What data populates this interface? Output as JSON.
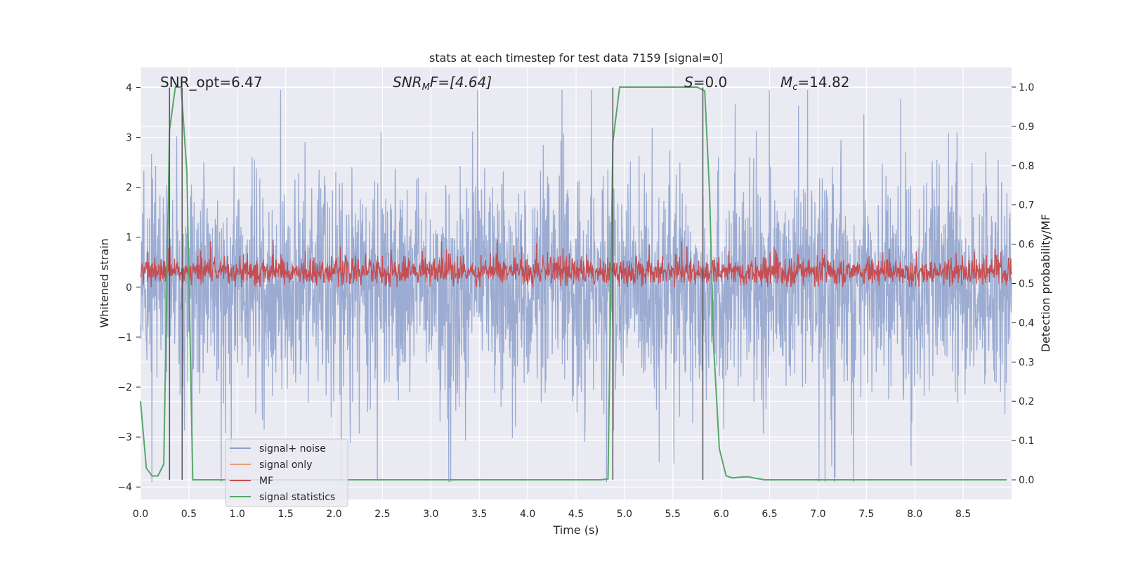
{
  "chart_data": {
    "type": "line",
    "title": "stats at each timestep for test data 7159 [signal=0]",
    "xlabel": "Time (s)",
    "ylabel_left": "Whitened strain",
    "ylabel_right": "Detection probability/MF",
    "xlim": [
      0,
      9
    ],
    "ylim_left": [
      -4.25,
      4.4
    ],
    "ylim_right": [
      -0.05,
      1.05
    ],
    "x_ticks": [
      "0.0",
      "0.5",
      "1.0",
      "1.5",
      "2.0",
      "2.5",
      "3.0",
      "3.5",
      "4.0",
      "4.5",
      "5.0",
      "5.5",
      "6.0",
      "6.5",
      "7.0",
      "7.5",
      "8.0",
      "8.5"
    ],
    "y_left_ticks": [
      "−4",
      "−3",
      "−2",
      "−1",
      "0",
      "1",
      "2",
      "3",
      "4"
    ],
    "y_right_ticks": [
      "0.0",
      "0.1",
      "0.2",
      "0.3",
      "0.4",
      "0.5",
      "0.6",
      "0.7",
      "0.8",
      "0.9",
      "1.0"
    ],
    "grid": true,
    "legend_placement": "lower-left",
    "annotations": {
      "snr_opt": "SNR_opt=6.47",
      "snr_mf_base": "SNR",
      "snr_mf_sub": "M",
      "snr_mf_rest": "F=[4.64]",
      "s_main": "S",
      "s_rest": "=0.0",
      "mc_main": "M",
      "mc_sub": "c",
      "mc_rest": "=14.82"
    },
    "series": [
      {
        "name": "signal+ noise",
        "color": "#8da0cb",
        "axis": "left",
        "style": "dense-noise",
        "envelope_typical": [
          -1.6,
          1.6
        ],
        "envelope_peak": [
          -3.9,
          3.95
        ]
      },
      {
        "name": "signal only",
        "color": "#e8a07a",
        "axis": "left",
        "values": []
      },
      {
        "name": "MF",
        "color": "#c44e52",
        "axis": "left",
        "style": "dense-noise",
        "envelope_typical": [
          0.1,
          0.6
        ],
        "envelope_peak": [
          0.0,
          0.95
        ]
      },
      {
        "name": "signal statistics",
        "color": "#55a868",
        "axis": "right",
        "x": [
          0.0,
          0.06,
          0.12,
          0.18,
          0.24,
          0.3,
          0.36,
          0.42,
          0.48,
          0.54,
          0.6,
          0.66,
          0.72,
          0.8,
          1.0,
          1.5,
          2.0,
          2.5,
          3.0,
          3.5,
          4.0,
          4.5,
          4.75,
          4.83,
          4.88,
          4.95,
          5.05,
          5.2,
          5.4,
          5.6,
          5.75,
          5.83,
          5.88,
          5.92,
          5.98,
          6.05,
          6.12,
          6.2,
          6.28,
          6.35,
          6.45,
          6.6,
          7.0,
          7.5,
          8.0,
          8.5,
          8.95
        ],
        "y": [
          0.2,
          0.03,
          0.01,
          0.01,
          0.04,
          0.89,
          1.0,
          1.0,
          0.78,
          0.0,
          0.0,
          0.0,
          0.0,
          0.0,
          0.0,
          0.0,
          0.0,
          0.0,
          0.0,
          0.0,
          0.0,
          0.0,
          0.0,
          0.002,
          0.86,
          1.0,
          1.0,
          1.0,
          1.0,
          1.0,
          1.0,
          0.99,
          0.73,
          0.35,
          0.08,
          0.01,
          0.005,
          0.007,
          0.008,
          0.004,
          0.0,
          0.0,
          0.0,
          0.0,
          0.0,
          0.0,
          0.0
        ]
      }
    ],
    "vertical_markers": [
      0.3,
      0.43,
      4.88,
      5.81
    ]
  }
}
